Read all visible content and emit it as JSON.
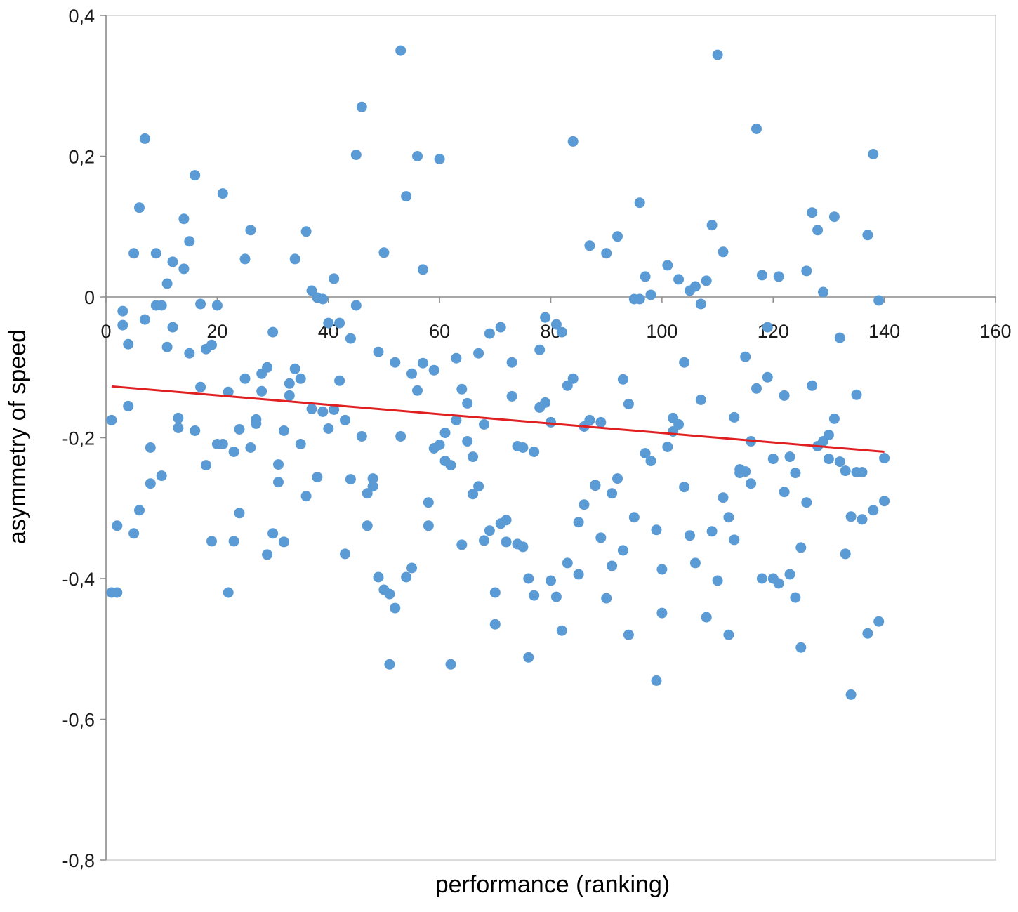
{
  "chart_data": {
    "type": "scatter",
    "title": "",
    "xlabel": "performance  (ranking)",
    "ylabel": "asymmetry  of speed",
    "xlim": [
      0,
      160
    ],
    "ylim": [
      -0.8,
      0.4
    ],
    "x_ticks": [
      {
        "value": 0,
        "label": "0"
      },
      {
        "value": 20,
        "label": "20"
      },
      {
        "value": 40,
        "label": "40"
      },
      {
        "value": 60,
        "label": "60"
      },
      {
        "value": 80,
        "label": "80"
      },
      {
        "value": 100,
        "label": "100"
      },
      {
        "value": 120,
        "label": "120"
      },
      {
        "value": 140,
        "label": "140"
      },
      {
        "value": 160,
        "label": "160"
      }
    ],
    "y_ticks": [
      {
        "value": 0.4,
        "label": "0,4"
      },
      {
        "value": 0.2,
        "label": "0,2"
      },
      {
        "value": 0,
        "label": "0"
      },
      {
        "value": -0.2,
        "label": "-0,2"
      },
      {
        "value": -0.4,
        "label": "-0,4"
      },
      {
        "value": -0.6,
        "label": "-0,6"
      },
      {
        "value": -0.8,
        "label": "-0,8"
      }
    ],
    "grid": false,
    "legend": "none",
    "colors": {
      "points": "#5b9bd5",
      "trendline": "#e02020",
      "axis": "#8c8c8c",
      "frame": "#d0d0d0"
    },
    "trendline": {
      "x": [
        1,
        140
      ],
      "y": [
        -0.127,
        -0.22
      ]
    },
    "series": [
      {
        "x": [
          1,
          1,
          2,
          2,
          3,
          3,
          4,
          4,
          5,
          5,
          6,
          6,
          7,
          7,
          8,
          8,
          9,
          9,
          10,
          10,
          11,
          11,
          12,
          12,
          13,
          13,
          14,
          14,
          15,
          15,
          16,
          16,
          17,
          17,
          18,
          18,
          19,
          19,
          20,
          20,
          21,
          21,
          22,
          22,
          23,
          23,
          24,
          24,
          25,
          25,
          26,
          26,
          27,
          27,
          28,
          28,
          29,
          29,
          30,
          30,
          31,
          31,
          32,
          32,
          33,
          33,
          34,
          34,
          35,
          35,
          36,
          36,
          37,
          37,
          38,
          38,
          39,
          39,
          40,
          40,
          41,
          41,
          42,
          42,
          43,
          43,
          44,
          44,
          45,
          45,
          46,
          46,
          47,
          47,
          48,
          48,
          49,
          49,
          50,
          50,
          51,
          51,
          52,
          52,
          53,
          53,
          54,
          54,
          55,
          55,
          56,
          56,
          57,
          57,
          58,
          58,
          59,
          59,
          60,
          60,
          61,
          61,
          62,
          62,
          63,
          63,
          64,
          64,
          65,
          65,
          66,
          66,
          67,
          67,
          68,
          68,
          69,
          69,
          70,
          70,
          71,
          71,
          72,
          72,
          73,
          73,
          74,
          74,
          75,
          75,
          76,
          76,
          77,
          77,
          78,
          78,
          79,
          79,
          80,
          80,
          81,
          81,
          82,
          82,
          83,
          83,
          84,
          84,
          85,
          85,
          86,
          86,
          87,
          87,
          88,
          88,
          89,
          89,
          90,
          90,
          91,
          91,
          92,
          92,
          93,
          93,
          94,
          94,
          95,
          95,
          96,
          96,
          97,
          97,
          98,
          98,
          99,
          99,
          100,
          100,
          101,
          101,
          102,
          102,
          103,
          103,
          104,
          104,
          105,
          105,
          106,
          106,
          107,
          107,
          108,
          108,
          109,
          109,
          110,
          110,
          111,
          111,
          112,
          112,
          113,
          113,
          114,
          114,
          115,
          115,
          116,
          116,
          117,
          117,
          118,
          118,
          119,
          119,
          120,
          120,
          121,
          121,
          122,
          122,
          123,
          123,
          124,
          124,
          125,
          125,
          126,
          126,
          127,
          127,
          128,
          128,
          129,
          129,
          130,
          130,
          131,
          131,
          132,
          132,
          133,
          133,
          134,
          134,
          135,
          135,
          136,
          136,
          137,
          137,
          138,
          138,
          139,
          139,
          140,
          140
        ],
        "y": [
          -0.175,
          -0.42,
          -0.325,
          -0.42,
          -0.02,
          -0.04,
          -0.155,
          -0.067,
          0.062,
          -0.336,
          0.127,
          -0.303,
          -0.032,
          0.225,
          -0.265,
          -0.214,
          0.062,
          -0.012,
          -0.254,
          -0.012,
          0.019,
          -0.071,
          -0.043,
          0.05,
          -0.172,
          -0.186,
          0.111,
          0.04,
          -0.08,
          0.079,
          0.173,
          -0.19,
          -0.128,
          -0.01,
          -0.074,
          -0.239,
          -0.068,
          -0.347,
          -0.012,
          -0.209,
          0.147,
          -0.209,
          -0.135,
          -0.42,
          -0.347,
          -0.22,
          -0.188,
          -0.307,
          0.054,
          -0.116,
          0.095,
          -0.214,
          -0.18,
          -0.174,
          -0.134,
          -0.109,
          -0.366,
          -0.1,
          -0.05,
          -0.336,
          -0.238,
          -0.263,
          -0.19,
          -0.348,
          -0.14,
          -0.123,
          0.054,
          -0.102,
          -0.209,
          -0.116,
          0.093,
          -0.283,
          -0.159,
          0.009,
          -0.256,
          -0.001,
          -0.163,
          -0.003,
          -0.187,
          -0.037,
          -0.16,
          0.026,
          -0.037,
          -0.119,
          -0.365,
          -0.175,
          -0.059,
          -0.259,
          0.202,
          -0.012,
          0.27,
          -0.198,
          -0.279,
          -0.325,
          -0.269,
          -0.258,
          -0.398,
          -0.078,
          -0.416,
          0.063,
          -0.422,
          -0.522,
          -0.093,
          -0.442,
          -0.198,
          0.35,
          0.143,
          -0.398,
          -0.109,
          -0.385,
          0.2,
          -0.133,
          -0.094,
          0.039,
          -0.325,
          -0.292,
          -0.104,
          -0.215,
          -0.21,
          0.196,
          -0.233,
          -0.193,
          -0.522,
          -0.239,
          -0.087,
          -0.175,
          -0.131,
          -0.352,
          -0.205,
          -0.151,
          -0.28,
          -0.227,
          -0.269,
          -0.08,
          -0.181,
          -0.346,
          -0.332,
          -0.052,
          -0.465,
          -0.42,
          -0.322,
          -0.043,
          -0.317,
          -0.348,
          -0.141,
          -0.093,
          -0.351,
          -0.212,
          -0.355,
          -0.214,
          -0.4,
          -0.512,
          -0.22,
          -0.424,
          -0.157,
          -0.075,
          -0.15,
          -0.029,
          -0.403,
          -0.178,
          -0.426,
          -0.039,
          -0.474,
          -0.05,
          -0.378,
          -0.126,
          -0.116,
          0.221,
          -0.394,
          -0.32,
          -0.184,
          -0.295,
          -0.175,
          0.073,
          -0.268,
          -0.267,
          -0.342,
          -0.178,
          -0.428,
          0.062,
          -0.279,
          -0.382,
          -0.258,
          0.086,
          -0.36,
          -0.117,
          -0.152,
          -0.48,
          -0.003,
          -0.313,
          0.134,
          -0.003,
          0.029,
          -0.222,
          -0.233,
          0.003,
          -0.331,
          -0.545,
          -0.449,
          -0.387,
          -0.213,
          0.045,
          -0.172,
          -0.191,
          -0.181,
          0.025,
          -0.093,
          -0.27,
          -0.339,
          0.009,
          -0.378,
          0.015,
          -0.146,
          -0.01,
          0.023,
          -0.455,
          0.102,
          -0.333,
          -0.403,
          0.344,
          0.064,
          -0.285,
          -0.48,
          -0.313,
          -0.171,
          -0.345,
          -0.25,
          -0.245,
          -0.248,
          -0.085,
          -0.265,
          -0.205,
          -0.13,
          0.239,
          0.031,
          -0.4,
          -0.114,
          -0.043,
          -0.23,
          -0.4,
          -0.407,
          0.029,
          -0.277,
          -0.14,
          -0.394,
          -0.227,
          -0.25,
          -0.427,
          -0.498,
          -0.356,
          -0.292,
          0.037,
          -0.126,
          0.12,
          -0.212,
          0.095,
          -0.205,
          0.007,
          -0.23,
          -0.196,
          -0.173,
          0.114,
          -0.234,
          -0.058,
          -0.247,
          -0.365,
          -0.312,
          -0.565,
          -0.139,
          -0.249,
          -0.316,
          -0.249,
          -0.478,
          0.088,
          -0.303,
          0.203,
          -0.005,
          -0.461,
          -0.29,
          -0.229
        ]
      }
    ]
  }
}
